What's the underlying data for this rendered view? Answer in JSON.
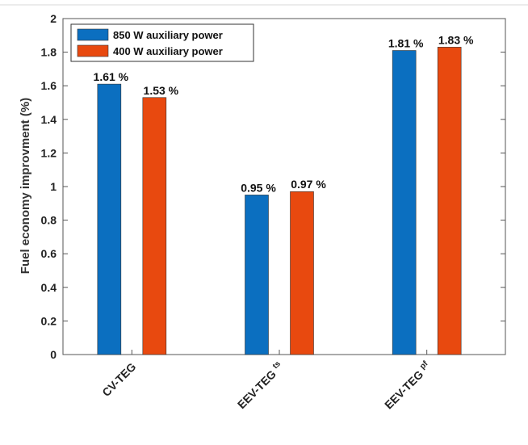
{
  "chart_data": {
    "type": "bar",
    "categories": [
      {
        "main": "CV-TEG",
        "sub": ""
      },
      {
        "main": "EEV-TEG",
        "sub": "ts"
      },
      {
        "main": "EEV-TEG",
        "sub": "pf"
      }
    ],
    "series": [
      {
        "name": "850 W auxiliary power",
        "color": "#0b6fc0",
        "values": [
          1.61,
          0.95,
          1.81
        ],
        "labels": [
          "1.61 %",
          "0.95 %",
          "1.81 %"
        ]
      },
      {
        "name": "400 W auxiliary power",
        "color": "#e8490f",
        "values": [
          1.53,
          0.97,
          1.83
        ],
        "labels": [
          "1.53 %",
          "0.97 %",
          "1.83 %"
        ]
      }
    ],
    "ylabel": "Fuel economy improvment (%)",
    "xlabel": "",
    "ylim": [
      0,
      2
    ],
    "yticks": [
      0,
      0.2,
      0.4,
      0.6,
      0.8,
      1,
      1.2,
      1.4,
      1.6,
      1.8,
      2
    ],
    "grid": false,
    "legend_position": "top-left"
  }
}
